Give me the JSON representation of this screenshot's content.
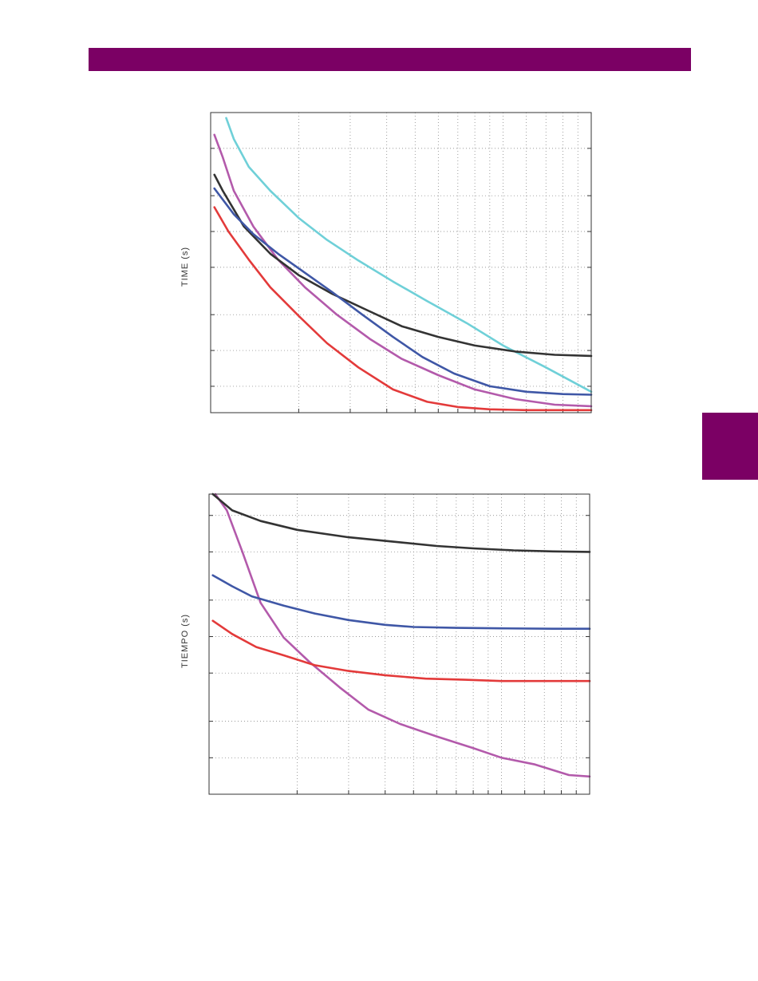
{
  "colors": {
    "brand": "#7b0064",
    "black": "#333333",
    "red": "#e33a3a",
    "blue": "#3f57a6",
    "magenta": "#b35aab",
    "cyan": "#6fd0d8"
  },
  "chart_data": [
    {
      "type": "line",
      "title": "",
      "xlabel": "",
      "ylabel": "TIME (s)",
      "xscale": "log",
      "yscale": "log",
      "grid": true,
      "xlim": [
        1,
        20
      ],
      "ylim": [
        0.3,
        100
      ],
      "series": [
        {
          "color": "cyan",
          "x": [
            1.13,
            1.2,
            1.35,
            1.6,
            2.0,
            2.5,
            3.2,
            4.2,
            5.5,
            7.5,
            10,
            14,
            20
          ],
          "y": [
            90,
            60,
            35,
            22,
            13,
            8.5,
            5.7,
            3.8,
            2.6,
            1.7,
            1.1,
            0.72,
            0.45
          ]
        },
        {
          "color": "magenta",
          "x": [
            1.03,
            1.1,
            1.2,
            1.4,
            1.7,
            2.1,
            2.7,
            3.5,
            4.5,
            6,
            8,
            11,
            15,
            20
          ],
          "y": [
            65,
            42,
            22,
            11,
            5.8,
            3.4,
            2.0,
            1.25,
            0.85,
            0.62,
            0.47,
            0.39,
            0.35,
            0.34
          ]
        },
        {
          "color": "black",
          "x": [
            1.03,
            1.1,
            1.3,
            1.6,
            2.0,
            2.6,
            3.4,
            4.5,
            6,
            8,
            11,
            15,
            20
          ],
          "y": [
            30,
            22,
            11,
            6.5,
            4.3,
            3.0,
            2.2,
            1.6,
            1.3,
            1.1,
            0.98,
            0.92,
            0.9
          ]
        },
        {
          "color": "blue",
          "x": [
            1.03,
            1.2,
            1.4,
            1.7,
            2.1,
            2.6,
            3.3,
            4.2,
            5.3,
            6.8,
            9,
            12,
            16,
            20
          ],
          "y": [
            23,
            14,
            9.5,
            6.5,
            4.5,
            3.1,
            2.0,
            1.3,
            0.88,
            0.64,
            0.5,
            0.45,
            0.43,
            0.425
          ]
        },
        {
          "color": "red",
          "x": [
            1.03,
            1.15,
            1.35,
            1.6,
            2.0,
            2.5,
            3.2,
            4.2,
            5.5,
            7,
            9,
            12,
            16,
            20
          ],
          "y": [
            16,
            10,
            5.8,
            3.4,
            1.95,
            1.15,
            0.72,
            0.47,
            0.37,
            0.335,
            0.32,
            0.315,
            0.315,
            0.315
          ]
        }
      ]
    },
    {
      "type": "line",
      "title": "",
      "xlabel": "",
      "ylabel": "TIEMPO (s)",
      "xscale": "log",
      "yscale": "log",
      "grid": true,
      "xlim": [
        1,
        20
      ],
      "ylim": [
        0.05,
        15
      ],
      "series": [
        {
          "color": "magenta",
          "x": [
            1.05,
            1.15,
            1.3,
            1.5,
            1.8,
            2.2,
            2.8,
            3.5,
            4.5,
            6,
            8,
            10,
            13,
            17,
            20
          ],
          "y": [
            15,
            11,
            5.0,
            1.9,
            0.98,
            0.62,
            0.38,
            0.25,
            0.19,
            0.15,
            0.12,
            0.1,
            0.088,
            0.072,
            0.07
          ]
        },
        {
          "color": "black",
          "x": [
            1.03,
            1.2,
            1.5,
            2.0,
            3.0,
            4.5,
            6,
            8,
            11,
            15,
            20
          ],
          "y": [
            15,
            11,
            9.0,
            7.6,
            6.6,
            6.0,
            5.6,
            5.35,
            5.15,
            5.05,
            5.0
          ]
        },
        {
          "color": "blue",
          "x": [
            1.03,
            1.2,
            1.4,
            1.8,
            2.3,
            3.0,
            4.0,
            5.0,
            7,
            10,
            15,
            20
          ],
          "y": [
            3.2,
            2.6,
            2.15,
            1.8,
            1.55,
            1.37,
            1.25,
            1.2,
            1.18,
            1.17,
            1.16,
            1.16
          ]
        },
        {
          "color": "red",
          "x": [
            1.03,
            1.2,
            1.45,
            1.8,
            2.3,
            3.0,
            4.0,
            5.5,
            7.5,
            10,
            14,
            20
          ],
          "y": [
            1.35,
            1.05,
            0.82,
            0.7,
            0.58,
            0.52,
            0.48,
            0.45,
            0.44,
            0.43,
            0.43,
            0.43
          ]
        }
      ]
    }
  ]
}
